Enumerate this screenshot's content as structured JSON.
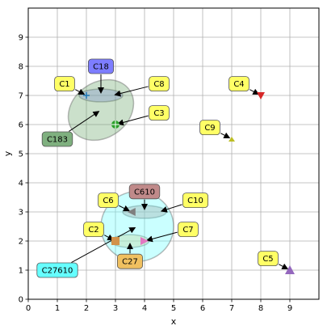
{
  "chart_data": {
    "type": "scatter",
    "title": "",
    "xlabel": "x",
    "ylabel": "y",
    "xlim": [
      0,
      10
    ],
    "ylim": [
      0,
      10
    ],
    "xticks": [
      "0",
      "1",
      "2",
      "3",
      "4",
      "5",
      "6",
      "7",
      "8",
      "9"
    ],
    "yticks": [
      "0",
      "1",
      "2",
      "3",
      "4",
      "5",
      "6",
      "7",
      "8",
      "9"
    ],
    "grid": true,
    "points": [
      {
        "label": "C1",
        "x": 2.0,
        "y": 7.0,
        "marker": "plus",
        "color": "#1f77b4",
        "text_x": 1.25,
        "text_y": 7.4,
        "box_color": "#ffff66"
      },
      {
        "label": "C8",
        "x": 2.9,
        "y": 7.0,
        "marker": "none",
        "color": "#1f77b4",
        "text_x": 4.5,
        "text_y": 7.4,
        "box_color": "#ffff66"
      },
      {
        "label": "C18",
        "x": 2.5,
        "y": 7.0,
        "marker": "none",
        "color": "#1f77b4",
        "text_x": 2.5,
        "text_y": 8.0,
        "box_color": "#7d7dff"
      },
      {
        "label": "C3",
        "x": 3.0,
        "y": 6.0,
        "marker": "circle-plus",
        "color": "#2ca02c",
        "text_x": 4.5,
        "text_y": 6.4,
        "box_color": "#ffff66"
      },
      {
        "label": "C183",
        "x": 2.5,
        "y": 6.5,
        "marker": "none",
        "color": "#2ca02c",
        "text_x": 1.0,
        "text_y": 5.5,
        "box_color": "#7fb07f"
      },
      {
        "label": "C4",
        "x": 8.0,
        "y": 7.0,
        "marker": "triangle-down",
        "color": "#d62728",
        "text_x": 7.25,
        "text_y": 7.4,
        "box_color": "#ffff66"
      },
      {
        "label": "C9",
        "x": 7.0,
        "y": 5.5,
        "marker": "triangle-up-small",
        "color": "#bcbd22",
        "text_x": 6.25,
        "text_y": 5.9,
        "box_color": "#ffff66"
      },
      {
        "label": "C6",
        "x": 3.55,
        "y": 3.0,
        "marker": "triangle-left",
        "color": "#7f7f7f",
        "text_x": 2.75,
        "text_y": 3.4,
        "box_color": "#ffff66"
      },
      {
        "label": "C610",
        "x": 4.0,
        "y": 3.0,
        "marker": "none",
        "color": "#7f7f7f",
        "text_x": 4.0,
        "text_y": 3.7,
        "box_color": "#c08a8a"
      },
      {
        "label": "C10",
        "x": 4.5,
        "y": 3.0,
        "marker": "none",
        "color": "#7f7f7f",
        "text_x": 5.75,
        "text_y": 3.4,
        "box_color": "#ffff66"
      },
      {
        "label": "C2",
        "x": 3.0,
        "y": 2.0,
        "marker": "square",
        "color": "#d2924a",
        "text_x": 2.25,
        "text_y": 2.4,
        "box_color": "#ffff66"
      },
      {
        "label": "C7",
        "x": 4.0,
        "y": 2.0,
        "marker": "triangle-right",
        "color": "#e377c2",
        "text_x": 5.5,
        "text_y": 2.4,
        "box_color": "#ffff66"
      },
      {
        "label": "C27",
        "x": 3.5,
        "y": 2.0,
        "marker": "none",
        "color": "#d2924a",
        "text_x": 3.5,
        "text_y": 1.3,
        "box_color": "#f0c060"
      },
      {
        "label": "C27610",
        "x": 3.75,
        "y": 2.5,
        "marker": "none",
        "color": "#17becf",
        "text_x": 1.0,
        "text_y": 1.0,
        "box_color": "#66ffff"
      },
      {
        "label": "C5",
        "x": 9.0,
        "y": 1.0,
        "marker": "triangle-up",
        "color": "#9467bd",
        "text_x": 8.25,
        "text_y": 1.4,
        "box_color": "#ffff66"
      }
    ],
    "ellipses": [
      {
        "label": "C18",
        "cx": 2.5,
        "cy": 7.0,
        "rx": 0.75,
        "ry": 0.22,
        "angle": 0,
        "fill": "#8888ff",
        "opacity": 0.35
      },
      {
        "label": "C183",
        "cx": 2.5,
        "cy": 6.5,
        "rx": 1.2,
        "ry": 0.95,
        "angle": -35,
        "fill": "#6aa66a",
        "opacity": 0.35
      },
      {
        "label": "C610",
        "cx": 4.0,
        "cy": 3.0,
        "rx": 0.75,
        "ry": 0.22,
        "angle": 0,
        "fill": "#c08a8a",
        "opacity": 0.4
      },
      {
        "label": "C27",
        "cx": 3.5,
        "cy": 2.0,
        "rx": 0.65,
        "ry": 0.22,
        "angle": 0,
        "fill": "#f0c060",
        "opacity": 0.35
      },
      {
        "label": "C27610",
        "cx": 3.75,
        "cy": 2.5,
        "rx": 1.25,
        "ry": 1.2,
        "angle": 0,
        "fill": "#66ffff",
        "opacity": 0.35
      }
    ]
  }
}
